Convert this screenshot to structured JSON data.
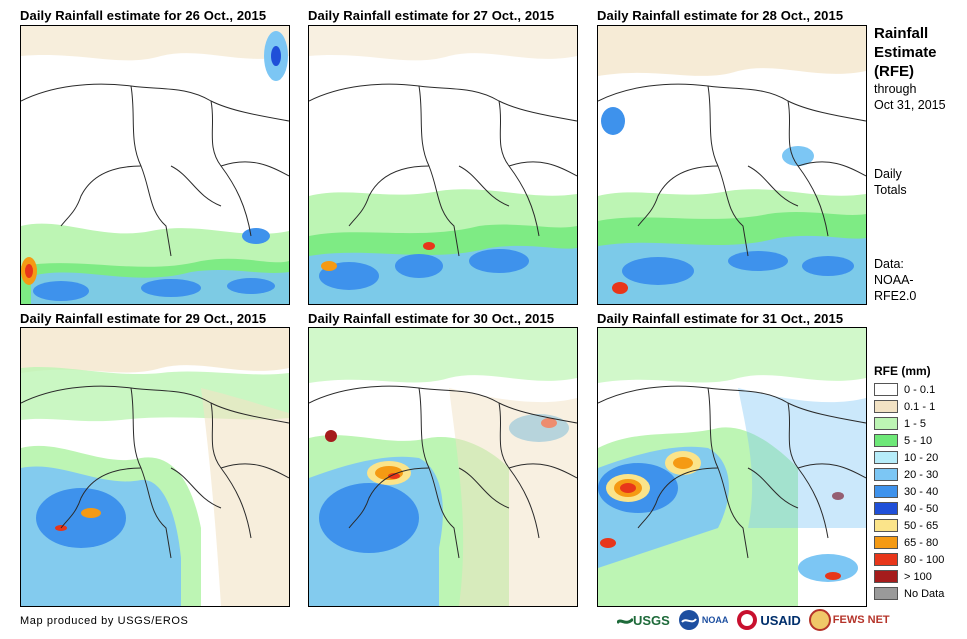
{
  "panels": [
    {
      "title": "Daily Rainfall estimate for 26 Oct., 2015"
    },
    {
      "title": "Daily Rainfall estimate for 27 Oct., 2015"
    },
    {
      "title": "Daily Rainfall estimate for 28 Oct., 2015"
    },
    {
      "title": "Daily Rainfall estimate for 29 Oct., 2015"
    },
    {
      "title": "Daily Rainfall estimate for 30 Oct., 2015"
    },
    {
      "title": "Daily Rainfall estimate for 31 Oct., 2015"
    }
  ],
  "sidebar": {
    "title_lines": [
      "Rainfall",
      "Estimate",
      "(RFE)"
    ],
    "through": "through",
    "through_date": "Oct 31, 2015",
    "totals_lines": [
      "Daily",
      "Totals"
    ],
    "data_lines": [
      "Data:",
      "NOAA-",
      "RFE2.0"
    ]
  },
  "legend": {
    "title": "RFE (mm)",
    "items": [
      {
        "label": "0 - 0.1",
        "color": "#ffffff"
      },
      {
        "label": "0.1 - 1",
        "color": "#f2e2c4"
      },
      {
        "label": "1 - 5",
        "color": "#bdf5b4"
      },
      {
        "label": "5 - 10",
        "color": "#6ee878"
      },
      {
        "label": "10 - 20",
        "color": "#b6ecf9"
      },
      {
        "label": "20 - 30",
        "color": "#7cc6f4"
      },
      {
        "label": "30 - 40",
        "color": "#3e92ec"
      },
      {
        "label": "40 - 50",
        "color": "#1f4fd8"
      },
      {
        "label": "50 - 65",
        "color": "#fbe48a"
      },
      {
        "label": "65 - 80",
        "color": "#f59a13"
      },
      {
        "label": "80 - 100",
        "color": "#e8361a"
      },
      {
        "label": "> 100",
        "color": "#a51c1c"
      },
      {
        "label": "No Data",
        "color": "#9a9a9a"
      }
    ]
  },
  "footer": {
    "credit": "Map produced by USGS/EROS",
    "logos": [
      "USGS",
      "NOAA",
      "USAID",
      "FEWS NET"
    ]
  }
}
